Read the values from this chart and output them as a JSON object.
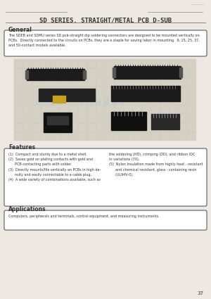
{
  "bg_color": "#ede9e2",
  "page_color": "#ede9e2",
  "title": "SD SERIES. STRAIGHT/METAL PCB D-SUB",
  "title_fontsize": 6.5,
  "page_number": "37",
  "section_general": "General",
  "general_text": "The SDEB and SDMU series SD pcb-straight dip soldering connectors are designed to be mounted vertically on\nPCBs.  Directly connected to the circuits on PCBs, they are a staple for saving labor in mounting.  9, 15, 25, 37,\nand 50-contact models available.",
  "section_features": "Features",
  "features_left": "(1)  Compact and sturdy due to a metal shell.\n(2)  Saves gold on plating contacts with gold and\n      PCB-contacting parts with solder.\n(3)  Directly mounts/fits vertically on PCBs in high de-\n      nsity and easily connectable to a cable plug.\n(4)  A wide variety of combinations available, such as",
  "features_right": "the soldering (HD), crimping (DD), and ribbon IDC\nin variations (70).\n(5)  Nylon insulation made from highly heat - resistant\n      and chemical resistant, glass - containing resin\n      (UL94V-0).",
  "section_applications": "Applications",
  "applications_text": "Computers, peripherals and terminals, control equipment, and measuring instruments.",
  "line_color": "#666666",
  "box_line_color": "#444444",
  "header_line_color": "#888888",
  "text_color": "#333333",
  "title_line_color": "#777777",
  "section_fontsize": 5.5,
  "body_fontsize": 3.5,
  "watermark_color": "#aac8e0",
  "watermark_alpha": 0.5,
  "grid_color": "#c8c4b8",
  "img_bg_color": "#d4d0c4"
}
